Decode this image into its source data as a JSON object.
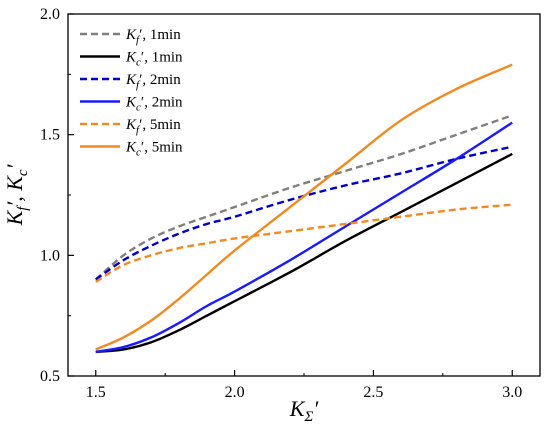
{
  "chart_data": {
    "type": "line",
    "xlabel": "KΣ′",
    "ylabel": "Kf′, Kc′",
    "xlim": [
      1.4,
      3.1
    ],
    "ylim": [
      0.5,
      2.0
    ],
    "x_ticks": [
      "1.5",
      "2.0",
      "2.5",
      "3.0"
    ],
    "y_ticks": [
      "0.5",
      "1.0",
      "1.5",
      "2.0"
    ],
    "x_tick_values": [
      1.5,
      2.0,
      2.5,
      3.0
    ],
    "y_tick_values": [
      0.5,
      1.0,
      1.5,
      2.0
    ],
    "grid": false,
    "legend_position": "top-left",
    "series": [
      {
        "name": "Kf′, 1min",
        "symbol": "f",
        "suffix": "′, 1min",
        "color": "#7f7f7f",
        "dash": "dashed",
        "x": [
          1.5,
          1.6,
          1.7,
          1.8,
          1.9,
          2.0,
          2.2,
          2.4,
          2.6,
          2.8,
          3.0
        ],
        "y": [
          0.9,
          1.0,
          1.07,
          1.12,
          1.16,
          1.2,
          1.28,
          1.35,
          1.42,
          1.5,
          1.58
        ]
      },
      {
        "name": "Kc′, 1min",
        "symbol": "c",
        "suffix": "′, 1min",
        "color": "#000000",
        "dash": "solid",
        "x": [
          1.5,
          1.6,
          1.7,
          1.8,
          1.9,
          2.0,
          2.2,
          2.4,
          2.6,
          2.8,
          3.0
        ],
        "y": [
          0.6,
          0.61,
          0.64,
          0.69,
          0.75,
          0.81,
          0.93,
          1.06,
          1.18,
          1.3,
          1.42
        ]
      },
      {
        "name": "Kf′, 2min",
        "symbol": "f",
        "suffix": "′, 2min",
        "color": "#0000cc",
        "dash": "dashed",
        "x": [
          1.5,
          1.6,
          1.7,
          1.8,
          1.9,
          2.0,
          2.2,
          2.4,
          2.6,
          2.8,
          3.0
        ],
        "y": [
          0.9,
          0.98,
          1.04,
          1.09,
          1.13,
          1.16,
          1.23,
          1.29,
          1.34,
          1.4,
          1.45
        ]
      },
      {
        "name": "Kc′, 2min",
        "symbol": "c",
        "suffix": "′, 2min",
        "color": "#1a1aff",
        "dash": "solid",
        "x": [
          1.5,
          1.6,
          1.7,
          1.8,
          1.9,
          2.0,
          2.2,
          2.4,
          2.6,
          2.8,
          3.0
        ],
        "y": [
          0.6,
          0.62,
          0.66,
          0.72,
          0.79,
          0.85,
          0.98,
          1.12,
          1.26,
          1.4,
          1.55
        ]
      },
      {
        "name": "Kf′, 5min",
        "symbol": "f",
        "suffix": "′, 5min",
        "color": "#f28a1e",
        "dash": "dashed",
        "x": [
          1.5,
          1.6,
          1.7,
          1.8,
          1.9,
          2.0,
          2.2,
          2.4,
          2.6,
          2.8,
          3.0
        ],
        "y": [
          0.89,
          0.96,
          1.0,
          1.03,
          1.05,
          1.07,
          1.1,
          1.13,
          1.16,
          1.19,
          1.21
        ]
      },
      {
        "name": "Kc′, 5min",
        "symbol": "c",
        "suffix": "′, 5min",
        "color": "#f28a1e",
        "dash": "solid",
        "x": [
          1.5,
          1.6,
          1.7,
          1.8,
          1.9,
          2.0,
          2.2,
          2.4,
          2.6,
          2.8,
          3.0
        ],
        "y": [
          0.61,
          0.66,
          0.73,
          0.82,
          0.92,
          1.02,
          1.2,
          1.38,
          1.56,
          1.69,
          1.79
        ]
      }
    ]
  }
}
